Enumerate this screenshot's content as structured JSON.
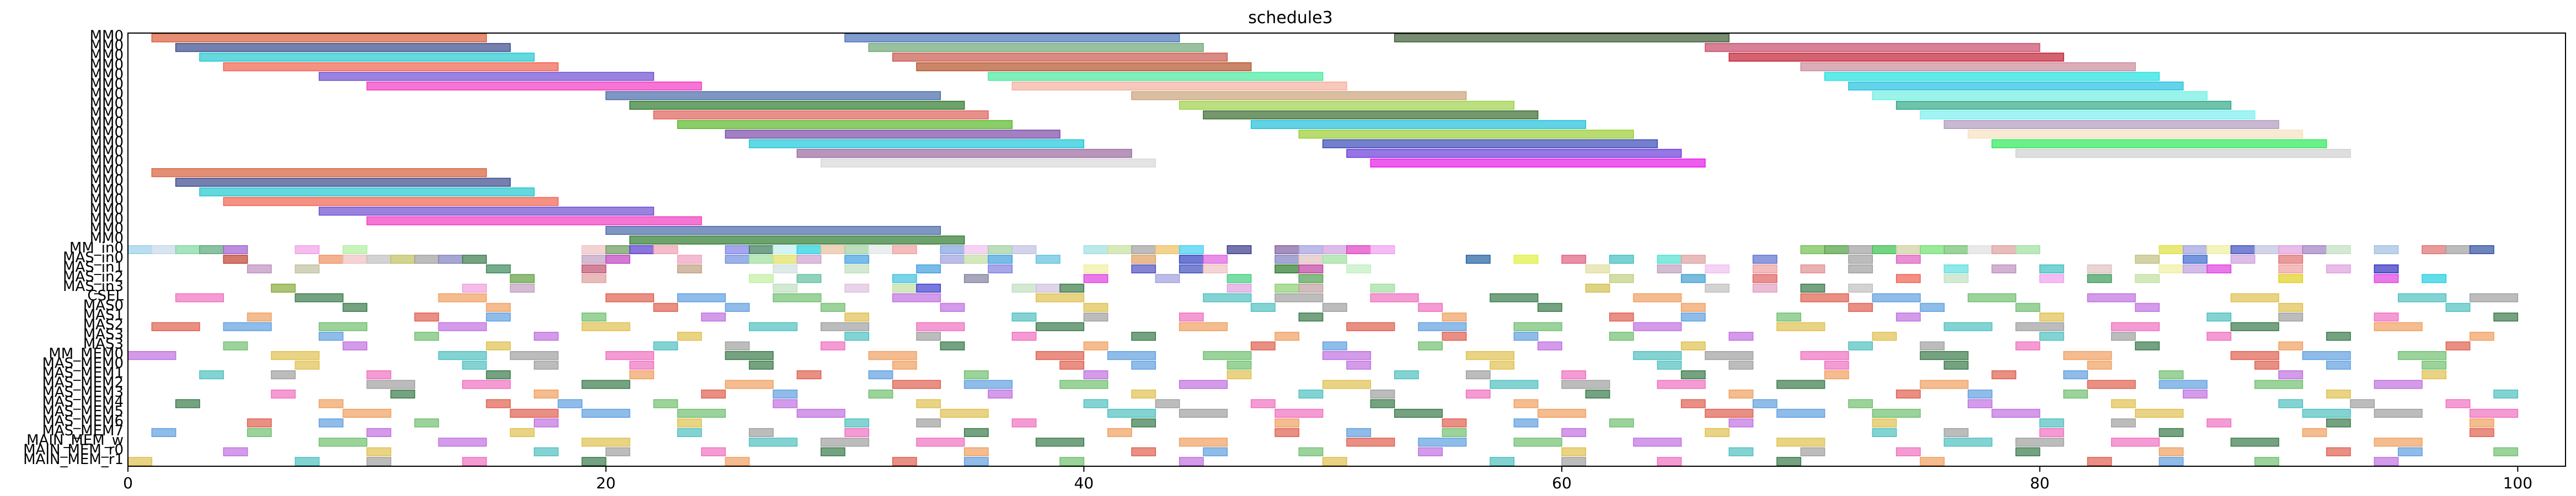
{
  "chart_data": {
    "type": "gantt",
    "title": "schedule3",
    "xlabel": "",
    "ylabel": "",
    "xlim": [
      0,
      102
    ],
    "xticks": [
      0,
      20,
      40,
      60,
      80,
      100
    ],
    "grid": false,
    "rows": [
      "MM0",
      "MM0",
      "MM0",
      "MM0",
      "MM0",
      "MM0",
      "MM0",
      "MM0",
      "MM0",
      "MM0",
      "MM0",
      "MM0",
      "MM0",
      "MM0",
      "MM0",
      "MM0",
      "MM0",
      "MM0",
      "MM0",
      "MM0",
      "MM0",
      "MM0",
      "MM_in0",
      "MAS_in0",
      "MAS_in1",
      "MAS_in2",
      "MAS_in3",
      "CSEL",
      "MAS0",
      "MAS1",
      "MAS2",
      "MAS3",
      "MAS3",
      "MM_MEM0",
      "MAS_MEM0",
      "MAS_MEM1",
      "MAS_MEM2",
      "MAS_MEM3",
      "MAS_MEM4",
      "MAS_MEM5",
      "MAS_MEM6",
      "MAS_MEM7",
      "MAIN_MEM_w",
      "MAIN_MEM_r0",
      "MAIN_MEM_r1"
    ],
    "row_labels_display": [
      "MM0",
      "MM0",
      "MM0",
      "MM0",
      "MM0",
      "MM0",
      "MM0",
      "MM0",
      "MM0",
      "MM0",
      "MM0",
      "MM0",
      "MM0",
      "MM0",
      "MM0",
      "MM0",
      "MM0",
      "MM0",
      "MM0",
      "MM0",
      "MM0",
      "MM0",
      "MM_in0",
      "MAS_in0",
      "MAS_in1",
      "MAS_in2",
      "MAS_in3",
      "CSEL",
      "MAS0",
      "MAS1",
      "MAS2",
      "MAS3",
      "MAS3",
      "MM_MEM0",
      "MAS_MEM0",
      "MAS_MEM1",
      "MAS_MEM2",
      "MAS_MEM3",
      "MAS_MEM4",
      "MAS_MEM5",
      "MAS_MEM6",
      "MAS_MEM7",
      "MAIN_MEM_w",
      "MAIN_MEM_r0",
      "MAIN_MEM_r1"
    ],
    "tasks": [
      {
        "row": 0,
        "start": 1.0,
        "end": 15.0,
        "color": "#d9603b"
      },
      {
        "row": 0,
        "start": 30.0,
        "end": 44.0,
        "color": "#4a74b8"
      },
      {
        "row": 0,
        "start": 53.0,
        "end": 67.0,
        "color": "#3d5c36"
      },
      {
        "row": 1,
        "start": 2.0,
        "end": 16.0,
        "color": "#3b4a8c"
      },
      {
        "row": 1,
        "start": 31.0,
        "end": 45.0,
        "color": "#6fa676"
      },
      {
        "row": 1,
        "start": 66.0,
        "end": 80.0,
        "color": "#c64a6a"
      },
      {
        "row": 2,
        "start": 3.0,
        "end": 17.0,
        "color": "#22c8cf"
      },
      {
        "row": 2,
        "start": 32.0,
        "end": 46.0,
        "color": "#c9584f"
      },
      {
        "row": 2,
        "start": 67.0,
        "end": 81.0,
        "color": "#c21f33"
      },
      {
        "row": 3,
        "start": 4.0,
        "end": 18.0,
        "color": "#f0624f"
      },
      {
        "row": 3,
        "start": 33.0,
        "end": 47.0,
        "color": "#b5532a"
      },
      {
        "row": 3,
        "start": 70.0,
        "end": 84.0,
        "color": "#cc8a9a"
      },
      {
        "row": 4,
        "start": 8.0,
        "end": 22.0,
        "color": "#6f4ed1"
      },
      {
        "row": 4,
        "start": 36.0,
        "end": 50.0,
        "color": "#48e89e"
      },
      {
        "row": 4,
        "start": 71.0,
        "end": 85.0,
        "color": "#22e0e0"
      },
      {
        "row": 5,
        "start": 10.0,
        "end": 24.0,
        "color": "#f23ac2"
      },
      {
        "row": 5,
        "start": 37.0,
        "end": 51.0,
        "color": "#f4b0a0"
      },
      {
        "row": 5,
        "start": 72.0,
        "end": 86.0,
        "color": "#22c0e0"
      },
      {
        "row": 6,
        "start": 20.0,
        "end": 34.0,
        "color": "#4a6aa8"
      },
      {
        "row": 6,
        "start": 42.0,
        "end": 56.0,
        "color": "#c9a27a"
      },
      {
        "row": 6,
        "start": 73.0,
        "end": 87.0,
        "color": "#6ff0e0"
      },
      {
        "row": 7,
        "start": 21.0,
        "end": 35.0,
        "color": "#2f7a2f"
      },
      {
        "row": 7,
        "start": 44.0,
        "end": 58.0,
        "color": "#9ed24a"
      },
      {
        "row": 7,
        "start": 74.0,
        "end": 88.0,
        "color": "#2faa88"
      },
      {
        "row": 8,
        "start": 22.0,
        "end": 36.0,
        "color": "#e0605a"
      },
      {
        "row": 8,
        "start": 45.0,
        "end": 59.0,
        "color": "#3a6b2e"
      },
      {
        "row": 8,
        "start": 75.0,
        "end": 89.0,
        "color": "#7af0f0"
      },
      {
        "row": 9,
        "start": 23.0,
        "end": 37.0,
        "color": "#5ab82a"
      },
      {
        "row": 9,
        "start": 47.0,
        "end": 61.0,
        "color": "#20c0d8"
      },
      {
        "row": 9,
        "start": 76.0,
        "end": 90.0,
        "color": "#b09abd"
      },
      {
        "row": 10,
        "start": 25.0,
        "end": 39.0,
        "color": "#7a4aa8"
      },
      {
        "row": 10,
        "start": 49.0,
        "end": 63.0,
        "color": "#9acd32"
      },
      {
        "row": 10,
        "start": 77.0,
        "end": 91.0,
        "color": "#f5e1c0"
      },
      {
        "row": 11,
        "start": 26.0,
        "end": 40.0,
        "color": "#1ec8d8"
      },
      {
        "row": 11,
        "start": 50.0,
        "end": 64.0,
        "color": "#3a4ab8"
      },
      {
        "row": 11,
        "start": 78.0,
        "end": 92.0,
        "color": "#2ee85a"
      },
      {
        "row": 12,
        "start": 28.0,
        "end": 42.0,
        "color": "#9a6aa0"
      },
      {
        "row": 12,
        "start": 51.0,
        "end": 65.0,
        "color": "#6a3ad8"
      },
      {
        "row": 12,
        "start": 79.0,
        "end": 93.0,
        "color": "#d0d0d0"
      },
      {
        "row": 13,
        "start": 29.0,
        "end": 43.0,
        "color": "#d8d8d8"
      },
      {
        "row": 13,
        "start": 52.0,
        "end": 66.0,
        "color": "#e818e8"
      }
    ],
    "small_tasks": [
      {
        "row": 22,
        "starts": [
          0,
          1,
          2,
          3,
          4,
          7,
          9,
          19,
          20,
          21,
          22,
          25,
          26,
          27,
          28,
          29,
          30,
          31,
          32,
          34,
          35,
          36,
          37,
          40,
          41,
          42,
          43,
          44,
          46,
          48,
          49,
          50,
          51,
          52,
          70,
          71,
          72,
          73,
          74,
          75,
          76,
          77,
          78,
          79,
          85,
          86,
          87,
          88,
          89,
          90,
          91,
          92,
          94,
          96,
          97,
          98
        ],
        "colors": [
          "#9ad0e8",
          "#c8d8e8",
          "#7fd8a0",
          "#5aa87a",
          "#a060d0",
          "#f0a0e8",
          "#b0f0a0",
          "#f0c0c0",
          "#6a9a5a",
          "#5a3ad0",
          "#f0a0b0",
          "#8080e8",
          "#3a7a5a",
          "#c0f0f0",
          "#20d0e0",
          "#e8c0a0",
          "#a0d0a0",
          "#e0e8e8",
          "#f0a0a0",
          "#80a0e0",
          "#f0c0f0",
          "#a0d0a0",
          "#c0c0e0",
          "#a0e0e0",
          "#c8e0a0",
          "#a0a0a0",
          "#f0c060",
          "#40d0f0",
          "#3a3a8a",
          "#8060a0",
          "#a0a0e0",
          "#d0a0e0",
          "#e040c0",
          "#f0a0f0",
          "#70c050",
          "#50a040",
          "#a0a0a0",
          "#3ac050",
          "#d0d0a0",
          "#70e070",
          "#70c070",
          "#e0e0e0",
          "#e0a0a0",
          "#a0e0a0",
          "#e0e040",
          "#a0a0e0",
          "#f0f0a0",
          "#4050c0",
          "#c0c0e0",
          "#e0a0e0",
          "#a080c0",
          "#c0e0c0",
          "#a0c0e0",
          "#e07070",
          "#a0a0a0",
          "#3050a0"
        ]
      },
      {
        "row": 23,
        "starts": [
          4,
          8,
          9,
          10,
          11,
          12,
          13,
          14,
          19,
          20,
          23,
          25,
          26,
          27,
          28,
          30,
          34,
          35,
          36,
          38,
          42,
          44,
          45,
          48,
          49,
          50,
          56,
          58,
          60,
          62,
          64,
          65,
          68,
          72,
          74,
          84,
          86,
          88,
          90
        ],
        "colors": [
          "#c04030",
          "#f09060",
          "#f0c0c0",
          "#c0c0c0",
          "#c0c060",
          "#a0a0a0",
          "#8080c0",
          "#3a7a4a",
          "#c0a0c0",
          "#c040c0",
          "#f0a0c0",
          "#7090e0",
          "#a0e0a0",
          "#e0e060",
          "#d0a0d0",
          "#40a0e0",
          "#a0a0e0",
          "#c0e0a0",
          "#40a0e0",
          "#60c0e0",
          "#e0a060",
          "#3040c0",
          "#e060e0",
          "#8080c0",
          "#e0c0c0",
          "#a0e0a0",
          "#2060a0",
          "#e0f040",
          "#e06080",
          "#40c0c0",
          "#50e0d0",
          "#e0a0a0",
          "#6070d0",
          "#a0a0a0",
          "#e060c0",
          "#c0c080",
          "#3a6ad0",
          "#d0a0e0",
          "#e07070"
        ]
      },
      {
        "row": 24,
        "starts": [
          5,
          7,
          15,
          19,
          23,
          27,
          30,
          33,
          36,
          40,
          42,
          44,
          45,
          48,
          49,
          51,
          61,
          64,
          66,
          68,
          70,
          72,
          76,
          78,
          80,
          82,
          85,
          86,
          87,
          90,
          92,
          94
        ],
        "colors": [
          "#c090c0",
          "#c0c0a0",
          "#3a8a5a",
          "#c05070",
          "#c0a080",
          "#d0e0e0",
          "#c0e0c0",
          "#40a0e0",
          "#8080e0",
          "#f0f0a0",
          "#5050c0",
          "#4050c0",
          "#f0c0c0",
          "#2a7a2a",
          "#c040a0",
          "#c0f0c0",
          "#e0e0a0",
          "#c0a0c0",
          "#f0c0f0",
          "#f0a0a0",
          "#e09090",
          "#a0a0a0",
          "#60e0e0",
          "#c090c0",
          "#40c0c0",
          "#e0c0c0",
          "#f0f0a0",
          "#c0a0e0",
          "#e040e0",
          "#f0a0a0",
          "#e0a0e0",
          "#3030c0"
        ]
      },
      {
        "row": 25,
        "starts": [
          16,
          19,
          26,
          28,
          32,
          35,
          40,
          43,
          46,
          49,
          62,
          65,
          68,
          74,
          76,
          80,
          82,
          84,
          90,
          94,
          96
        ],
        "colors": [
          "#60a040",
          "#e0a0a0",
          "#c0f0a0",
          "#60c0a0",
          "#40c0e0",
          "#8080a0",
          "#e040e0",
          "#a0a0e0",
          "#40d080",
          "#50a050",
          "#c0d080",
          "#40a0d0",
          "#e06060",
          "#f06050",
          "#c0e0c0",
          "#f0a0f0",
          "#3a9a5a",
          "#c0e0a0",
          "#e0d020",
          "#e040e0",
          "#20d0e0"
        ]
      },
      {
        "row": 26,
        "starts": [
          6,
          14,
          16,
          27,
          30,
          32,
          33,
          37,
          38,
          39,
          46,
          48,
          49,
          52,
          61,
          66,
          68,
          70,
          72
        ],
        "colors": [
          "#8aaa3a",
          "#f0a0e0",
          "#c0a0c0",
          "#c0e0c0",
          "#e0c0e0",
          "#c0e0a0",
          "#4040d0",
          "#c0e0c0",
          "#d0c0e0",
          "#3a7a4a",
          "#e0a0e0",
          "#8ad070",
          "#c0a0a0",
          "#a0e0a0",
          "#d0c050",
          "#c0c0c0",
          "#e0a0c0",
          "#3a7a4a",
          "#c0c0c0"
        ]
      }
    ]
  }
}
